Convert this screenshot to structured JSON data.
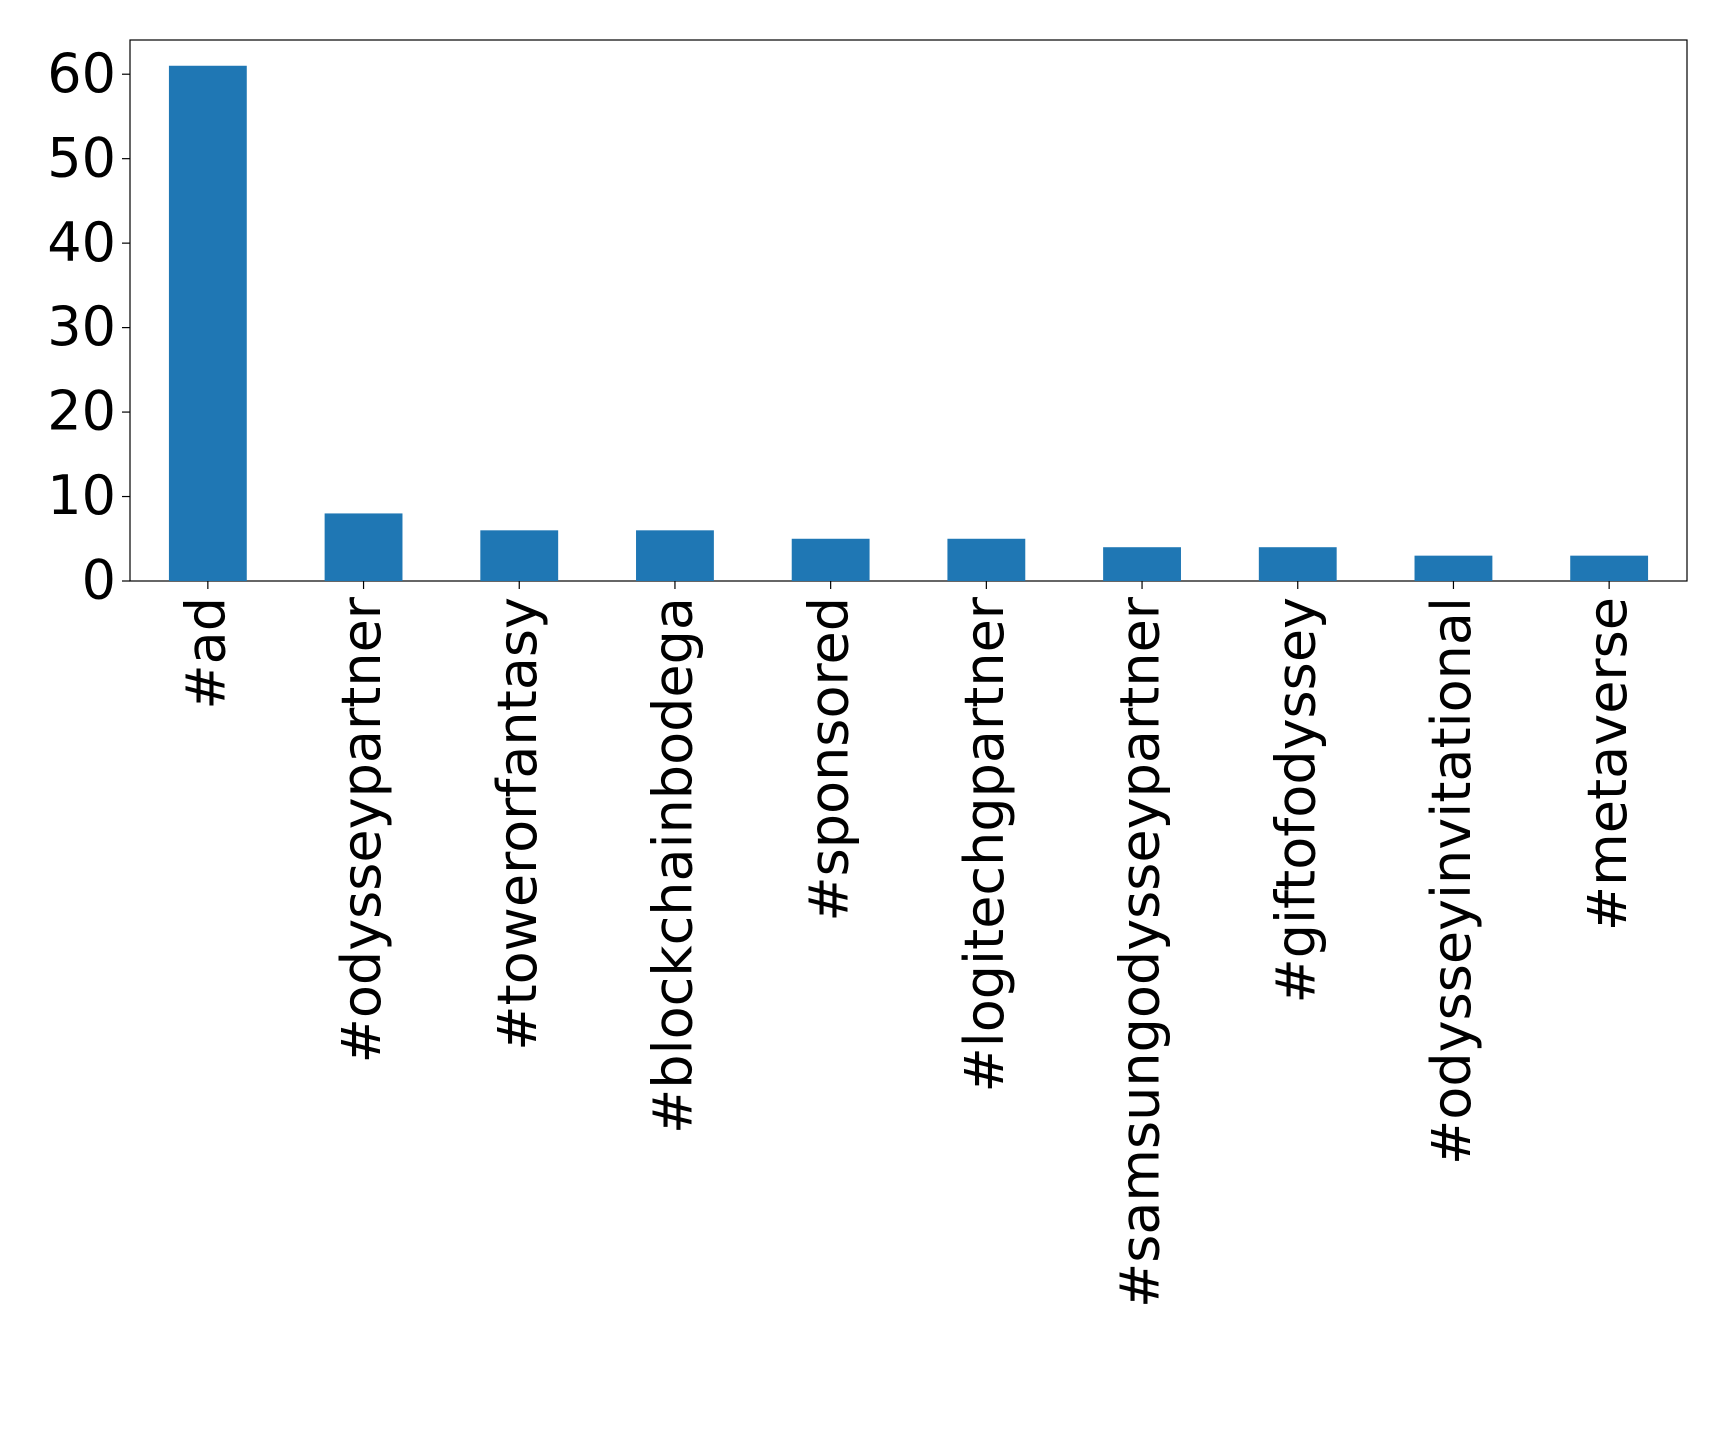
{
  "chart_data": {
    "type": "bar",
    "categories": [
      "#ad",
      "#odysseypartner",
      "#towerorfantasy",
      "#blockchainbodega",
      "#sponsored",
      "#logitechgpartner",
      "#samsungodysseypartner",
      "#giftofodyssey",
      "#odysseyinvitational",
      "#metaverse"
    ],
    "values": [
      61,
      8,
      6,
      6,
      5,
      5,
      4,
      4,
      3,
      3
    ],
    "color": "#1f77b4",
    "ylim": [
      0,
      64.05
    ],
    "yticks": [
      0,
      10,
      20,
      30,
      40,
      50,
      60
    ],
    "grid": false
  }
}
